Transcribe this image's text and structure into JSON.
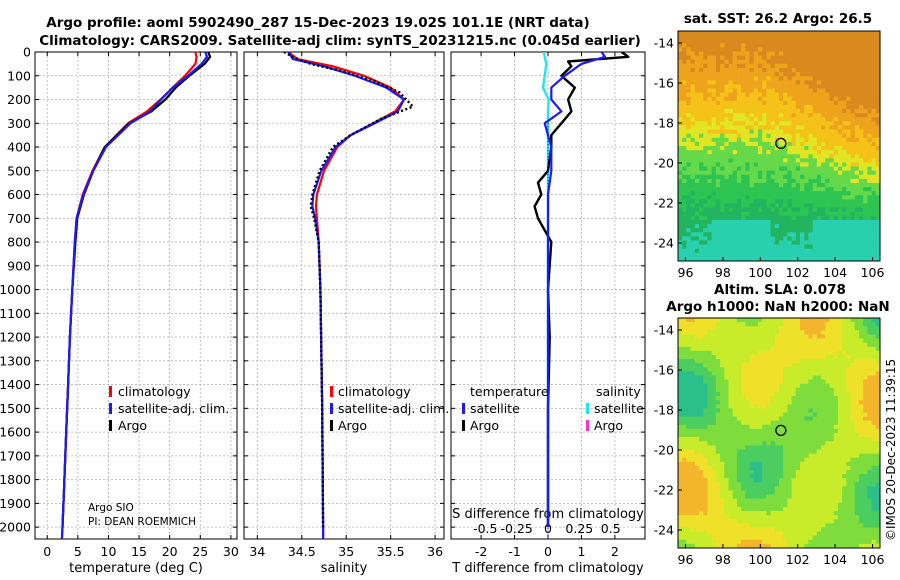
{
  "header": {
    "line1": "Argo profile: aoml 5902490_287 15-Dec-2023 19.02S 101.1E (NRT data)",
    "line2": "Climatology: CARS2009. Satellite-adj clim: synTS_20231215.nc (0.045d earlier)"
  },
  "colors": {
    "climatology": "#ff0000",
    "satellite_adj": "#1a1aff",
    "argo": "#000000",
    "satellite_T": "#1a1aff",
    "satellite_S": "#22e5f0",
    "argo_S": "#ff33cc",
    "grid": "#b4b4b4"
  },
  "chart_data": [
    {
      "type": "line",
      "name": "temperature-profile",
      "xlabel": "temperature (deg C)",
      "ylabel": "",
      "xlim": [
        -2,
        31
      ],
      "ylim": [
        2050,
        0
      ],
      "xticks": [
        0,
        5,
        10,
        15,
        20,
        25,
        30
      ],
      "yticks": [
        0,
        100,
        200,
        300,
        400,
        500,
        600,
        700,
        800,
        900,
        1000,
        1100,
        1200,
        1300,
        1400,
        1500,
        1600,
        1700,
        1800,
        1900,
        2000
      ],
      "legend": [
        "climatology",
        "satellite-adj. clim.",
        "Argo"
      ],
      "annotation": [
        "Argo SIO",
        "PI: DEAN ROEMMICH"
      ],
      "series": [
        {
          "name": "climatology",
          "depth": [
            0,
            20,
            50,
            100,
            150,
            200,
            250,
            300,
            400,
            500,
            600,
            700,
            800,
            1000,
            1200,
            1400,
            1600,
            1800,
            2000,
            2050
          ],
          "values": [
            24.2,
            24.4,
            24.2,
            22.5,
            20.5,
            18.5,
            16.3,
            13.2,
            9.4,
            7.4,
            5.8,
            4.8,
            4.5,
            4.1,
            3.7,
            3.4,
            3.1,
            2.8,
            2.5,
            2.4
          ]
        },
        {
          "name": "satellite-adj. clim.",
          "depth": [
            0,
            20,
            50,
            100,
            150,
            200,
            250,
            300,
            400,
            500,
            600,
            700,
            800,
            1000,
            1200,
            1400,
            1600,
            1800,
            2000,
            2050
          ],
          "values": [
            25.8,
            26.1,
            25.2,
            23.0,
            20.5,
            18.6,
            16.8,
            13.6,
            9.6,
            7.5,
            5.9,
            4.8,
            4.5,
            4.1,
            3.7,
            3.4,
            3.1,
            2.8,
            2.5,
            2.4
          ]
        },
        {
          "name": "Argo",
          "depth": [
            0,
            20,
            50,
            100,
            150,
            200,
            250,
            300,
            400,
            500,
            600,
            700,
            800,
            1000,
            1200,
            1400,
            1600,
            1800,
            2000
          ],
          "values": [
            26.3,
            26.6,
            25.7,
            23.2,
            21.0,
            19.3,
            17.0,
            13.4,
            9.4,
            7.5,
            6.0,
            4.9,
            4.6,
            4.1,
            3.7,
            3.4,
            3.1,
            2.8,
            2.5
          ]
        }
      ]
    },
    {
      "type": "line",
      "name": "salinity-profile",
      "xlabel": "salinity",
      "ylabel": "",
      "xlim": [
        33.85,
        36.1
      ],
      "ylim": [
        2050,
        0
      ],
      "xticks": [
        34,
        34.5,
        35,
        35.5,
        36
      ],
      "xticklabels": [
        "34",
        "34.5",
        "35",
        "35.5",
        "36"
      ],
      "legend": [
        "climatology",
        "satellite-adj. clim.",
        "Argo"
      ],
      "series": [
        {
          "name": "climatology",
          "depth": [
            0,
            30,
            60,
            100,
            150,
            200,
            250,
            300,
            350,
            400,
            500,
            600,
            650,
            700,
            800,
            1000,
            1500,
            2000,
            2050
          ],
          "values": [
            34.35,
            34.45,
            34.85,
            35.2,
            35.5,
            35.65,
            35.55,
            35.3,
            35.05,
            34.9,
            34.75,
            34.67,
            34.66,
            34.67,
            34.69,
            34.71,
            34.73,
            34.74,
            34.74
          ]
        },
        {
          "name": "satellite-adj. clim.",
          "depth": [
            0,
            30,
            60,
            100,
            150,
            200,
            250,
            300,
            350,
            400,
            500,
            600,
            650,
            700,
            800,
            1000,
            1500,
            2000,
            2050
          ],
          "values": [
            34.35,
            34.4,
            34.75,
            35.1,
            35.45,
            35.65,
            35.58,
            35.32,
            35.05,
            34.88,
            34.72,
            34.63,
            34.62,
            34.65,
            34.69,
            34.71,
            34.73,
            34.74,
            34.74
          ]
        },
        {
          "name": "Argo",
          "depth": [
            0,
            20,
            50,
            80,
            120,
            170,
            230,
            280,
            350,
            400,
            500,
            600,
            650,
            700,
            800,
            1000,
            1500,
            2000
          ],
          "values": [
            34.3,
            34.4,
            34.6,
            34.95,
            35.3,
            35.6,
            35.75,
            35.4,
            35.05,
            34.85,
            34.7,
            34.62,
            34.6,
            34.64,
            34.69,
            34.71,
            34.73,
            34.74
          ]
        }
      ]
    },
    {
      "type": "line",
      "name": "difference-profile",
      "xlabel": "T difference from climatology",
      "xlabel_top": "S difference from climatology",
      "xlim": [
        -2.9,
        2.9
      ],
      "ylim": [
        2050,
        0
      ],
      "xticks": [
        -2,
        -1,
        0,
        1,
        2
      ],
      "s_ticks": [
        -0.5,
        -0.25,
        0,
        0.25,
        0.5
      ],
      "s_ticklabels": [
        "-0.5",
        "-0.25",
        "0",
        "0.25",
        "0.5"
      ],
      "legend": {
        "temperature_title": "temperature",
        "salinity_title": "salinity",
        "temperature": [
          "satellite",
          "Argo"
        ],
        "salinity": [
          "satellite",
          "Argo"
        ]
      },
      "series": [
        {
          "name": "satellite T",
          "depth": [
            0,
            20,
            50,
            100,
            150,
            200,
            250,
            300,
            400,
            500,
            600,
            800,
            1000,
            1500,
            2000
          ],
          "values": [
            1.6,
            1.7,
            1.0,
            0.5,
            0.1,
            0.1,
            0.4,
            -0.1,
            0.1,
            0.1,
            0.0,
            0.0,
            0.0,
            0.0,
            0.0
          ]
        },
        {
          "name": "Argo T",
          "depth": [
            0,
            20,
            40,
            60,
            100,
            150,
            200,
            250,
            300,
            350,
            400,
            500,
            550,
            600,
            650,
            700,
            800,
            1000,
            1200,
            1500,
            2000
          ],
          "values": [
            2.2,
            2.4,
            0.6,
            0.7,
            0.4,
            0.8,
            0.6,
            0.7,
            0.4,
            0.1,
            0.1,
            0.0,
            -0.3,
            -0.2,
            -0.4,
            -0.3,
            0.1,
            0.0,
            0.05,
            0.0,
            0.0
          ]
        },
        {
          "name": "satellite S",
          "depth": [
            0,
            20,
            50,
            100,
            150,
            200,
            250,
            300,
            400,
            500,
            600,
            800,
            1000,
            1500,
            2000
          ],
          "values": [
            -0.12,
            -0.1,
            -0.05,
            -0.1,
            -0.15,
            0.02,
            0.0,
            0.0,
            0.0,
            0.0,
            0.0,
            0.0,
            0.0,
            0.0,
            0.0
          ]
        }
      ]
    },
    {
      "type": "heatmap",
      "name": "sst-map",
      "title": "sat. SST: 26.2 Argo: 26.5",
      "xlim": [
        95.6,
        106.4
      ],
      "ylim": [
        -24.9,
        -13.4
      ],
      "xticks": [
        96,
        98,
        100,
        102,
        104,
        106
      ],
      "yticks": [
        -14,
        -16,
        -18,
        -20,
        -22,
        -24
      ],
      "marker": {
        "lon": 101.1,
        "lat": -19.02
      }
    },
    {
      "type": "heatmap",
      "name": "sla-map",
      "title_line1": "Altim. SLA: 0.078",
      "title_line2": "Argo h1000: NaN h2000: NaN",
      "xlim": [
        95.6,
        106.4
      ],
      "ylim": [
        -24.9,
        -13.4
      ],
      "xticks": [
        96,
        98,
        100,
        102,
        104,
        106
      ],
      "yticks": [
        -14,
        -16,
        -18,
        -20,
        -22,
        -24
      ],
      "marker": {
        "lon": 101.1,
        "lat": -19.02
      }
    }
  ],
  "footer": {
    "stamp": "©IMOS 20-Dec-2023 11:39:15"
  }
}
